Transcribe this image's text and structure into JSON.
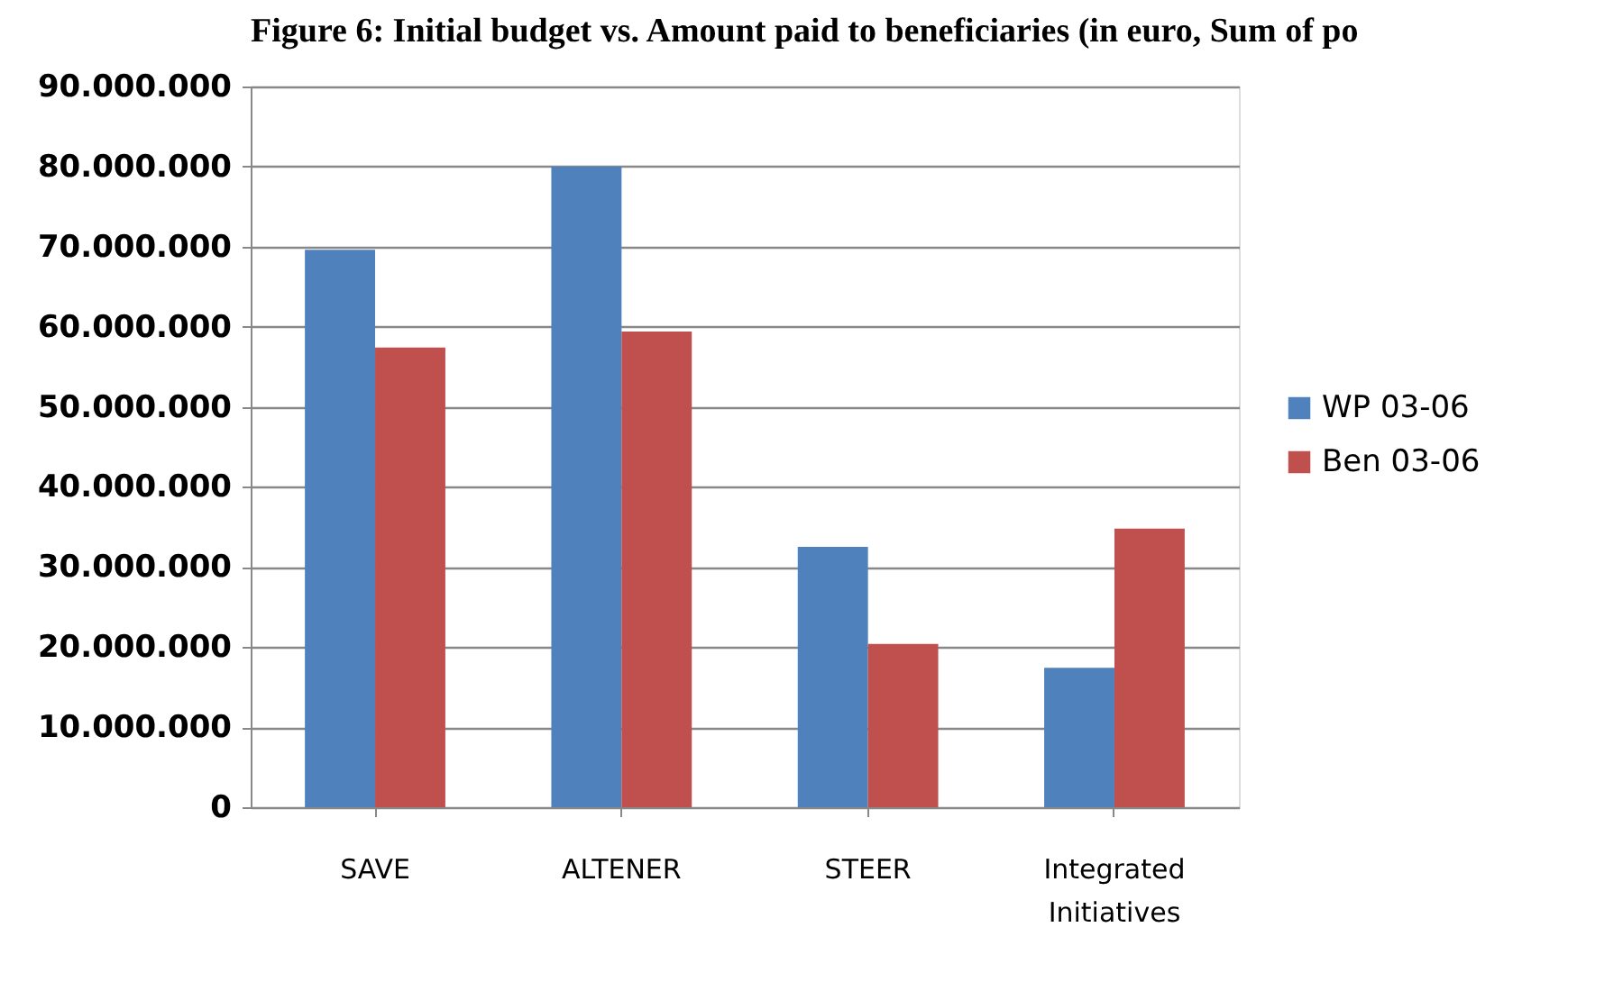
{
  "chart_data": {
    "type": "bar",
    "title": "Figure 6: Initial budget vs. Amount paid to beneficiaries (in euro, Sum of po",
    "categories": [
      "SAVE",
      "ALTENER",
      "STEER",
      "Integrated Initiatives"
    ],
    "series": [
      {
        "name": "WP 03-06",
        "color": "#4f81bd",
        "values": [
          69600000,
          80000000,
          32500000,
          17400000
        ]
      },
      {
        "name": "Ben 03-06",
        "color": "#c0504d",
        "values": [
          57400000,
          59400000,
          20400000,
          34800000
        ]
      }
    ],
    "ylim": [
      0,
      90000000
    ],
    "yticks": [
      0,
      {
        "value": 10000000,
        "label": "10.000.000"
      },
      {
        "value": 20000000,
        "label": "20.000.000"
      },
      {
        "value": 30000000,
        "label": "30.000.000"
      },
      {
        "value": 40000000,
        "label": "40.000.000"
      },
      {
        "value": 50000000,
        "label": "50.000.000"
      },
      {
        "value": 60000000,
        "label": "60.000.000"
      },
      {
        "value": 70000000,
        "label": "70.000.000"
      },
      {
        "value": 80000000,
        "label": "80.000.000"
      },
      {
        "value": 90000000,
        "label": "90.000.000"
      }
    ],
    "grid": "y",
    "legend": "right"
  }
}
